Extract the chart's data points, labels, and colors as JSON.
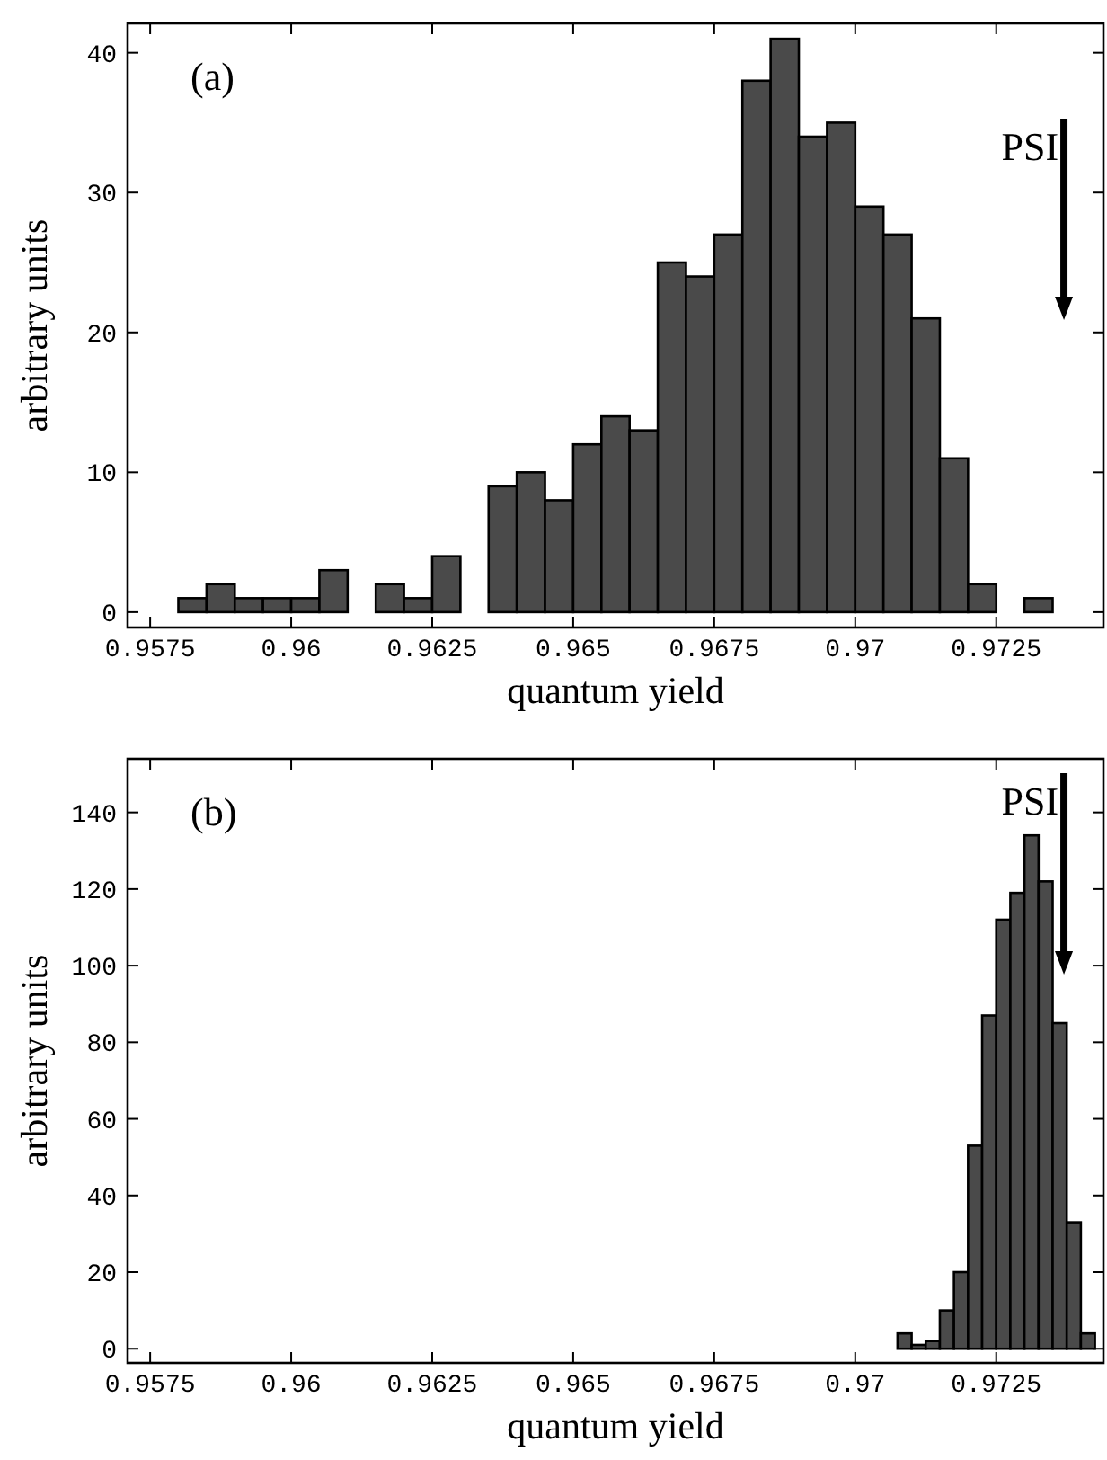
{
  "chart_data": [
    {
      "type": "histogram",
      "title": "(a)",
      "xlabel": "quantum yield",
      "ylabel": "arbitrary units",
      "color": "#4a4a4a",
      "bins": [
        0.9575,
        0.958,
        0.9585,
        0.959,
        0.9595,
        0.96,
        0.9605,
        0.961,
        0.9615,
        0.962,
        0.9625,
        0.963,
        0.9635,
        0.964,
        0.9645,
        0.965,
        0.9655,
        0.966,
        0.9665,
        0.967,
        0.9675,
        0.968,
        0.9685,
        0.969,
        0.9695,
        0.97,
        0.9705,
        0.971,
        0.9715,
        0.972,
        0.9725,
        0.973,
        0.9735,
        0.974
      ],
      "values": [
        0,
        1,
        2,
        1,
        1,
        1,
        3,
        0,
        2,
        1,
        4,
        0,
        9,
        10,
        8,
        12,
        14,
        13,
        25,
        24,
        27,
        38,
        41,
        34,
        35,
        29,
        27,
        21,
        11,
        2,
        0,
        1,
        0
      ],
      "xlim": [
        0.9571,
        0.9744
      ],
      "xticks": [
        0.9575,
        0.96,
        0.9625,
        0.965,
        0.9675,
        0.97,
        0.9725
      ],
      "ylim": [
        -1.1,
        42.1
      ],
      "yticks": [
        0,
        10,
        20,
        30,
        40
      ],
      "ref_lines": [
        {
          "axis": "x",
          "value": 0.9737,
          "label": "PSI"
        }
      ]
    },
    {
      "type": "histogram",
      "title": "(b)",
      "xlabel": "quantum yield",
      "ylabel": "arbitrary units",
      "color": "#4a4a4a",
      "bins": [
        0.9575,
        0.95775,
        0.958,
        0.95825,
        0.9585,
        0.95875,
        0.959,
        0.95925,
        0.9595,
        0.95975,
        0.96,
        0.96025,
        0.9605,
        0.96075,
        0.961,
        0.96125,
        0.9615,
        0.96175,
        0.962,
        0.96225,
        0.9625,
        0.96275,
        0.963,
        0.96325,
        0.9635,
        0.96375,
        0.964,
        0.96425,
        0.9645,
        0.96475,
        0.965,
        0.96525,
        0.9655,
        0.96575,
        0.966,
        0.96625,
        0.9665,
        0.96675,
        0.967,
        0.96725,
        0.9675,
        0.96775,
        0.968,
        0.96825,
        0.9685,
        0.96875,
        0.969,
        0.96925,
        0.9695,
        0.96975,
        0.97,
        0.97025,
        0.9705,
        0.97075,
        0.971,
        0.97125,
        0.9715,
        0.97175,
        0.972,
        0.97225,
        0.9725,
        0.97275,
        0.973,
        0.97325,
        0.9735,
        0.97375,
        0.974,
        0.97425
      ],
      "values": [
        0,
        0,
        0,
        0,
        0,
        0,
        0,
        0,
        0,
        0,
        0,
        0,
        0,
        0,
        0,
        0,
        0,
        0,
        0,
        0,
        0,
        0,
        0,
        0,
        0,
        0,
        0,
        0,
        0,
        0,
        0,
        0,
        0,
        0,
        0,
        0,
        0,
        0,
        0,
        0,
        0,
        0,
        0,
        0,
        0,
        0,
        0,
        0,
        0,
        0,
        0,
        0,
        0,
        4,
        1,
        2,
        10,
        20,
        53,
        87,
        112,
        119,
        134,
        122,
        85,
        33,
        4
      ],
      "xlim": [
        0.9571,
        0.9744
      ],
      "xticks": [
        0.9575,
        0.96,
        0.9625,
        0.965,
        0.9675,
        0.97,
        0.9725
      ],
      "ylim": [
        -3.7,
        154
      ],
      "yticks": [
        0,
        20,
        40,
        60,
        80,
        100,
        120,
        140
      ],
      "ref_lines": [
        {
          "axis": "x",
          "value": 0.9737,
          "label": "PSI"
        }
      ]
    }
  ]
}
